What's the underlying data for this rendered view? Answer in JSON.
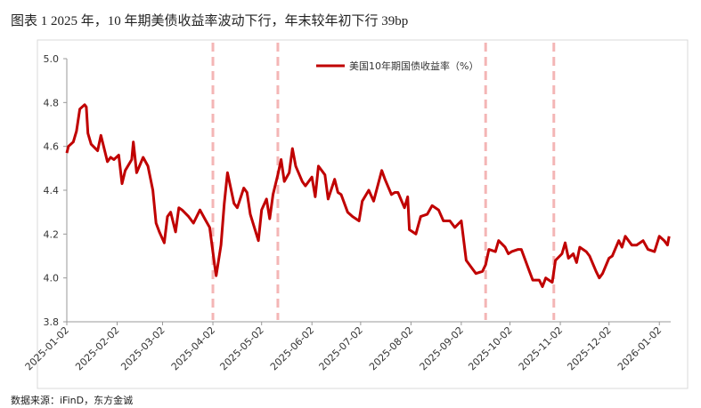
{
  "chart_data": {
    "type": "line",
    "title": "图表 1 2025 年，10 年期美债收益率波动下行，年末较年初下行 39bp",
    "source": "数据来源：iFinD，东方金诚",
    "xlim": [
      "2025-01-02",
      "2026-01-09"
    ],
    "xticks": [
      "2025-01-02",
      "2025-02-02",
      "2025-03-02",
      "2025-04-02",
      "2025-05-02",
      "2025-06-02",
      "2025-07-02",
      "2025-08-02",
      "2025-09-02",
      "2025-10-02",
      "2025-11-02",
      "2025-12-02",
      "2026-01-02"
    ],
    "ylim": [
      3.8,
      5.0
    ],
    "yticks": [
      {
        "value": 3.8,
        "label": "3.8"
      },
      {
        "value": 4.0,
        "label": "4.0"
      },
      {
        "value": 4.2,
        "label": "4.2"
      },
      {
        "value": 4.4,
        "label": "4.4"
      },
      {
        "value": 4.6,
        "label": "4.6"
      },
      {
        "value": 4.8,
        "label": "4.8"
      },
      {
        "value": 5.0,
        "label": "5.0"
      }
    ],
    "event_lines": {
      "color": "#f4b6b6",
      "x": [
        "2025-04-02",
        "2025-05-12",
        "2025-09-17",
        "2025-10-29"
      ]
    },
    "legend": "top",
    "x": [
      "2025-01-02",
      "2025-01-03",
      "2025-01-06",
      "2025-01-08",
      "2025-01-10",
      "2025-01-13",
      "2025-01-14",
      "2025-01-15",
      "2025-01-17",
      "2025-01-21",
      "2025-01-23",
      "2025-01-27",
      "2025-01-29",
      "2025-01-31",
      "2025-02-03",
      "2025-02-05",
      "2025-02-07",
      "2025-02-11",
      "2025-02-12",
      "2025-02-14",
      "2025-02-18",
      "2025-02-21",
      "2025-02-24",
      "2025-02-26",
      "2025-02-28",
      "2025-03-03",
      "2025-03-05",
      "2025-03-07",
      "2025-03-10",
      "2025-03-12",
      "2025-03-14",
      "2025-03-18",
      "2025-03-21",
      "2025-03-25",
      "2025-03-28",
      "2025-03-31",
      "2025-04-03",
      "2025-04-04",
      "2025-04-07",
      "2025-04-09",
      "2025-04-11",
      "2025-04-15",
      "2025-04-17",
      "2025-04-21",
      "2025-04-23",
      "2025-04-25",
      "2025-04-30",
      "2025-05-02",
      "2025-05-05",
      "2025-05-07",
      "2025-05-09",
      "2025-05-12",
      "2025-05-14",
      "2025-05-16",
      "2025-05-19",
      "2025-05-21",
      "2025-05-23",
      "2025-05-27",
      "2025-05-29",
      "2025-06-02",
      "2025-06-04",
      "2025-06-06",
      "2025-06-10",
      "2025-06-12",
      "2025-06-16",
      "2025-06-18",
      "2025-06-20",
      "2025-06-24",
      "2025-06-27",
      "2025-07-01",
      "2025-07-03",
      "2025-07-07",
      "2025-07-10",
      "2025-07-15",
      "2025-07-17",
      "2025-07-21",
      "2025-07-23",
      "2025-07-25",
      "2025-07-29",
      "2025-07-31",
      "2025-08-01",
      "2025-08-05",
      "2025-08-08",
      "2025-08-12",
      "2025-08-15",
      "2025-08-19",
      "2025-08-22",
      "2025-08-26",
      "2025-08-29",
      "2025-09-02",
      "2025-09-05",
      "2025-09-09",
      "2025-09-11",
      "2025-09-15",
      "2025-09-17",
      "2025-09-19",
      "2025-09-23",
      "2025-09-25",
      "2025-09-29",
      "2025-10-01",
      "2025-10-03",
      "2025-10-07",
      "2025-10-09",
      "2025-10-14",
      "2025-10-16",
      "2025-10-20",
      "2025-10-22",
      "2025-10-24",
      "2025-10-28",
      "2025-10-30",
      "2025-11-03",
      "2025-11-05",
      "2025-11-07",
      "2025-11-10",
      "2025-11-12",
      "2025-11-14",
      "2025-11-18",
      "2025-11-20",
      "2025-11-24",
      "2025-11-26",
      "2025-11-28",
      "2025-12-02",
      "2025-12-04",
      "2025-12-08",
      "2025-12-10",
      "2025-12-12",
      "2025-12-16",
      "2025-12-19",
      "2025-12-23",
      "2025-12-26",
      "2025-12-30",
      "2026-01-02",
      "2026-01-05",
      "2026-01-07",
      "2026-01-08"
    ],
    "series": [
      {
        "name": "美国10年期国债收益率（%）",
        "color": "#c00000",
        "values": [
          4.57,
          4.6,
          4.62,
          4.67,
          4.77,
          4.79,
          4.78,
          4.66,
          4.61,
          4.58,
          4.65,
          4.53,
          4.55,
          4.54,
          4.56,
          4.43,
          4.49,
          4.54,
          4.62,
          4.48,
          4.55,
          4.51,
          4.4,
          4.25,
          4.21,
          4.16,
          4.28,
          4.3,
          4.21,
          4.32,
          4.31,
          4.28,
          4.25,
          4.31,
          4.27,
          4.23,
          4.06,
          4.01,
          4.15,
          4.34,
          4.48,
          4.34,
          4.32,
          4.41,
          4.39,
          4.29,
          4.17,
          4.31,
          4.36,
          4.27,
          4.38,
          4.47,
          4.54,
          4.44,
          4.48,
          4.59,
          4.51,
          4.44,
          4.42,
          4.46,
          4.37,
          4.51,
          4.47,
          4.36,
          4.45,
          4.39,
          4.38,
          4.3,
          4.28,
          4.26,
          4.35,
          4.4,
          4.35,
          4.49,
          4.45,
          4.38,
          4.39,
          4.39,
          4.32,
          4.37,
          4.22,
          4.2,
          4.28,
          4.29,
          4.33,
          4.31,
          4.26,
          4.26,
          4.23,
          4.26,
          4.08,
          4.04,
          4.02,
          4.03,
          4.06,
          4.13,
          4.12,
          4.17,
          4.14,
          4.11,
          4.12,
          4.13,
          4.13,
          4.03,
          3.99,
          3.99,
          3.96,
          4.0,
          3.98,
          4.08,
          4.11,
          4.16,
          4.09,
          4.11,
          4.07,
          4.14,
          4.12,
          4.1,
          4.03,
          4.0,
          4.02,
          4.09,
          4.1,
          4.17,
          4.14,
          4.19,
          4.15,
          4.15,
          4.17,
          4.13,
          4.12,
          4.19,
          4.17,
          4.15,
          4.19
        ]
      }
    ]
  }
}
